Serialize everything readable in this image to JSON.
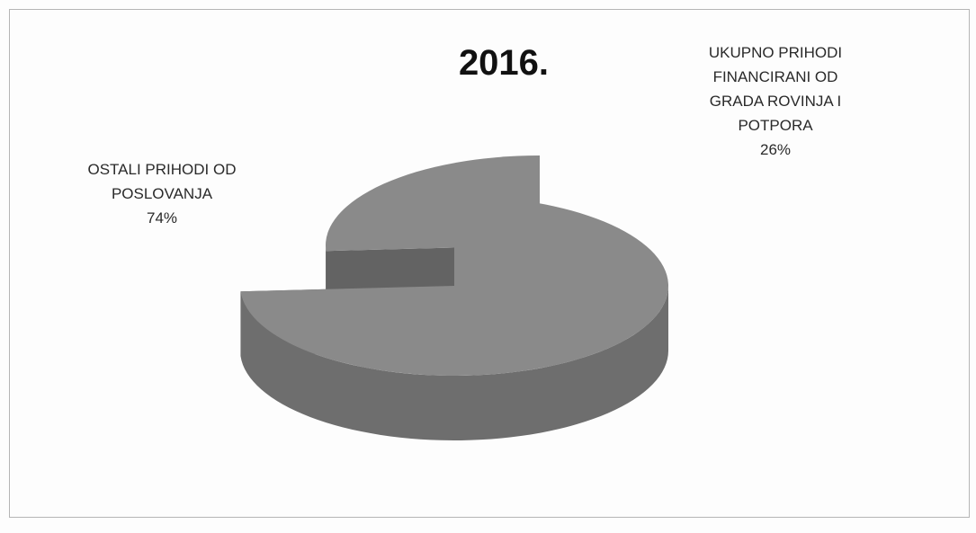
{
  "chart_data": {
    "type": "pie",
    "title": "2016.",
    "categories": [
      "OSTALI PRIHODI OD POSLOVANJA",
      "UKUPNO PRIHODI FINANCIRANI OD GRADA ROVINJA I POTPORA"
    ],
    "values": [
      74,
      26
    ],
    "value_labels": [
      "74%",
      "26%"
    ],
    "colors": [
      "#8a8a8a",
      "#8a8a8a"
    ],
    "three_d": true
  }
}
